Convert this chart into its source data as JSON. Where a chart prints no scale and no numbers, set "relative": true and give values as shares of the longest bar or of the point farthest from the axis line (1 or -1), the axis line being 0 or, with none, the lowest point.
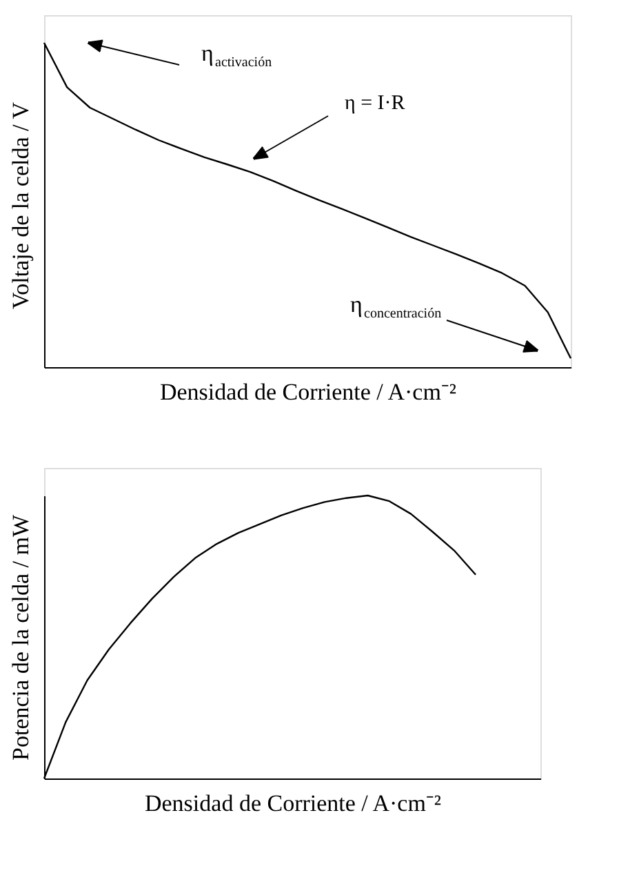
{
  "chart_data": [
    {
      "type": "line",
      "relative": true,
      "tick_labels": false,
      "xlabel": "Densidad de Corriente / A·cm⁻²",
      "ylabel": "Voltaje de la celda  / V",
      "categories": [
        null,
        null,
        null,
        null,
        null,
        null,
        null,
        null,
        null,
        null,
        null,
        null,
        null,
        null,
        null,
        null,
        null,
        null,
        null,
        null,
        null,
        null,
        null,
        null
      ],
      "series": [
        {
          "color": "#000000",
          "values": [
            1.0,
            0.863,
            0.8,
            0.766,
            0.732,
            0.7,
            0.673,
            0.647,
            0.625,
            0.602,
            0.574,
            0.544,
            0.515,
            0.488,
            0.46,
            0.431,
            0.402,
            0.375,
            0.348,
            0.32,
            0.29,
            0.251,
            0.169,
            0.027
          ]
        }
      ],
      "annotations": [
        "η$_{activación}$",
        "η = I·R",
        "η$_{concentración}$"
      ]
    },
    {
      "type": "line",
      "relative": true,
      "tick_labels": false,
      "xlabel": "Densidad de Corriente / A·cm⁻²",
      "ylabel": "Potencia de la celda  / mW",
      "categories": [
        null,
        null,
        null,
        null,
        null,
        null,
        null,
        null,
        null,
        null,
        null,
        null,
        null,
        null,
        null,
        null,
        null,
        null,
        null,
        null,
        null,
        null,
        null,
        null
      ],
      "series": [
        {
          "color": "#000000",
          "values": [
            0,
            0.199,
            0.347,
            0.456,
            0.549,
            0.635,
            0.712,
            0.779,
            0.829,
            0.868,
            0.899,
            0.93,
            0.956,
            0.977,
            0.991,
            1.0,
            0.98,
            0.935,
            0.872,
            0.806,
            0.72,
            null,
            null,
            null
          ]
        }
      ]
    }
  ]
}
